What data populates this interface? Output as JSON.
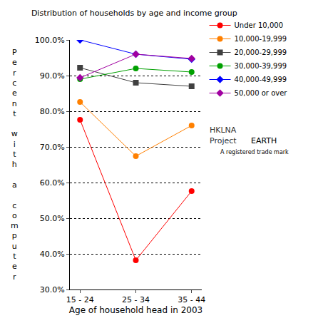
{
  "chart_data": {
    "type": "line",
    "title": "Distribution of households by age and income group",
    "x_label": "Age of household head in 2003",
    "y_label": "Percent with a computer",
    "categories": [
      "15 - 24",
      "25 - 34",
      "35 - 44"
    ],
    "series": [
      {
        "name": "Under 10,000",
        "color": "#ff0000",
        "marker": "circle",
        "values": [
          77.6,
          38.2,
          57.6
        ]
      },
      {
        "name": "10,000-19,999",
        "color": "#ff8000",
        "marker": "circle",
        "values": [
          82.6,
          67.4,
          76.0
        ]
      },
      {
        "name": "20,000-29,999",
        "color": "#404040",
        "marker": "square",
        "values": [
          92.2,
          88.0,
          87.0
        ]
      },
      {
        "name": "30,000-39,999",
        "color": "#00a000",
        "marker": "circle",
        "values": [
          89.0,
          92.0,
          91.0
        ]
      },
      {
        "name": "40,000-49,999",
        "color": "#0000ff",
        "marker": "diamond",
        "values": [
          100.0,
          96.0,
          94.6
        ]
      },
      {
        "name": "50,000 or over",
        "color": "#a000a0",
        "marker": "diamond",
        "values": [
          89.4,
          96.0,
          94.8
        ]
      }
    ],
    "ylim": [
      30,
      100
    ],
    "yticks": [
      {
        "value": 30,
        "label": "30.0%"
      },
      {
        "value": 40,
        "label": "40.0%"
      },
      {
        "value": 50,
        "label": "50.0%"
      },
      {
        "value": 60,
        "label": "60.0%"
      },
      {
        "value": 70,
        "label": "70.0%"
      },
      {
        "value": 80,
        "label": "80.0%"
      },
      {
        "value": 90,
        "label": "90.0%"
      },
      {
        "value": 100,
        "label": "100.0%"
      }
    ],
    "grid": true,
    "legend": "top right",
    "annotations": [
      "HKLNA",
      "Project",
      "EARTH",
      "A registered trade mark"
    ]
  }
}
